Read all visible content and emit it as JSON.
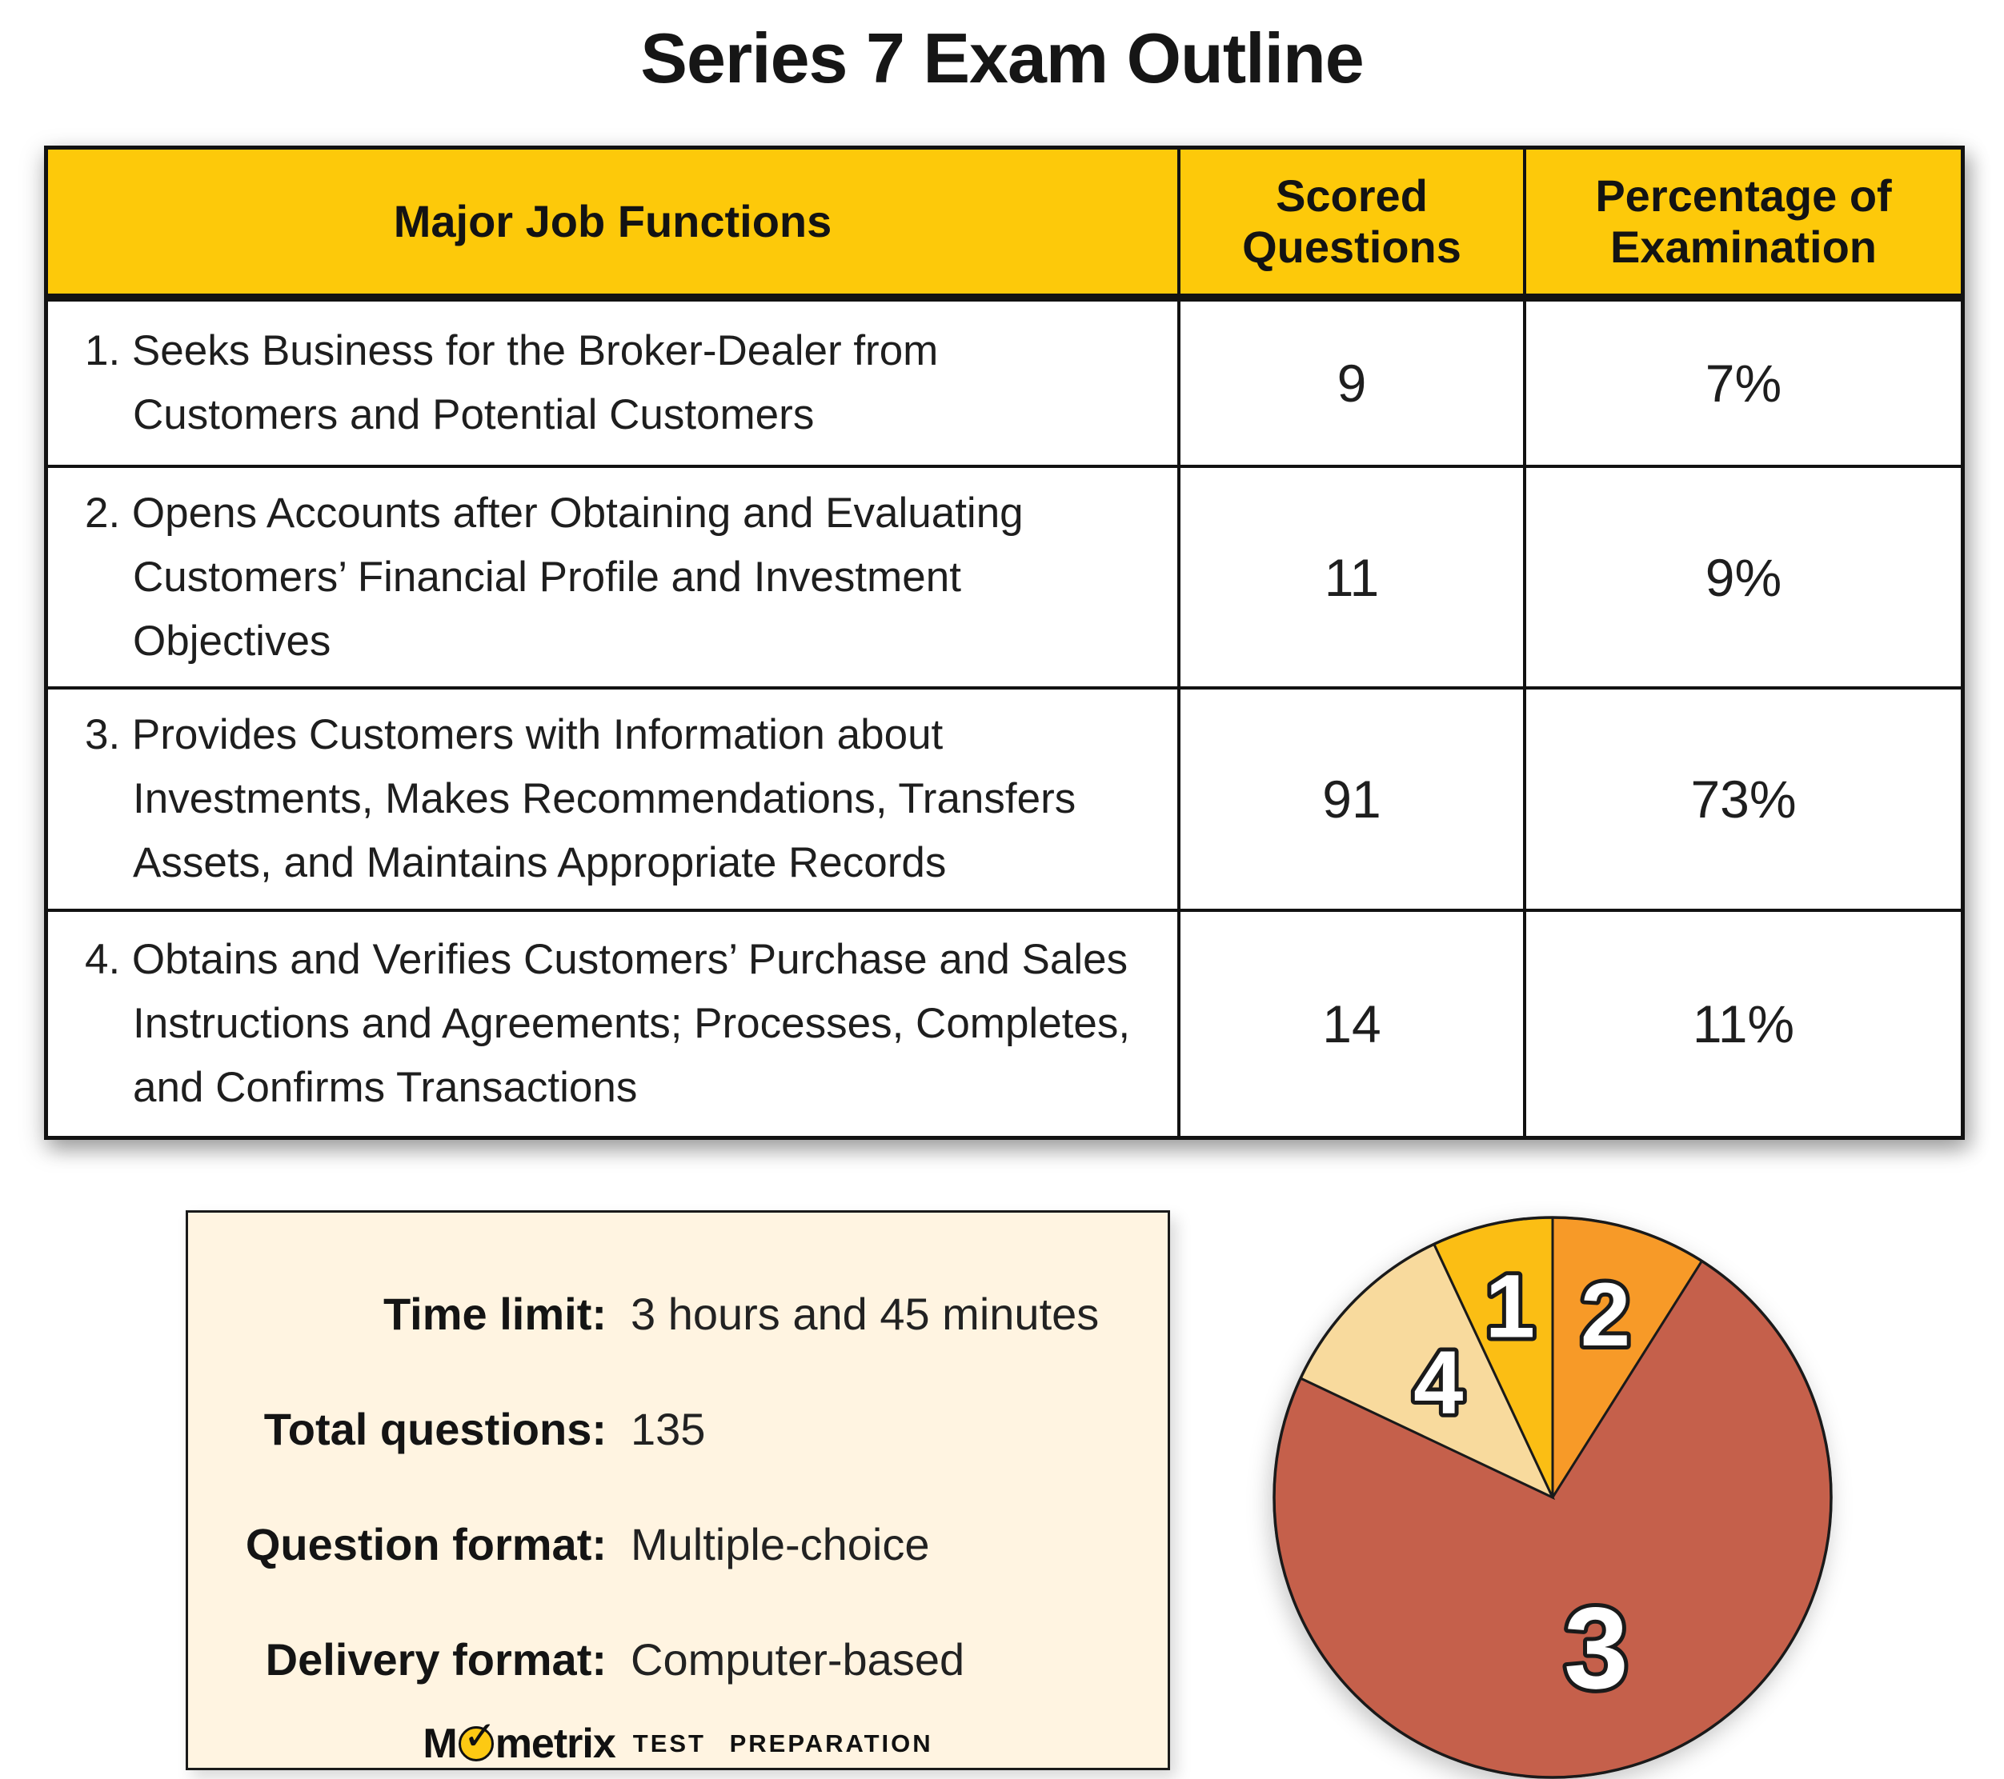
{
  "title": "Series 7 Exam Outline",
  "table": {
    "headers": [
      "Major Job Functions",
      "Scored Questions",
      "Percentage of Examination"
    ],
    "rows": [
      {
        "number": "1.",
        "function": "Seeks Business for the Broker-Dealer from Customers and Potential Customers",
        "scored": "9",
        "percentage": "7%"
      },
      {
        "number": "2.",
        "function": "Opens Accounts after Obtaining and Evaluating Customers’ Financial Profile and Investment Objectives",
        "scored": "11",
        "percentage": "9%"
      },
      {
        "number": "3.",
        "function": "Provides Customers with Information about Investments, Makes Recommendations, Transfers Assets, and Maintains Appropriate Records",
        "scored": "91",
        "percentage": "73%"
      },
      {
        "number": "4.",
        "function": "Obtains and Verifies Customers’ Purchase and Sales Instructions and Agreements; Processes, Completes, and Confirms Transactions",
        "scored": "14",
        "percentage": "11%"
      }
    ]
  },
  "info_box": {
    "items": [
      {
        "label": "Time limit:",
        "value": "3 hours and 45 minutes"
      },
      {
        "label": "Total questions:",
        "value": "135"
      },
      {
        "label": "Question format:",
        "value": "Multiple-choice"
      },
      {
        "label": "Delivery format:",
        "value": "Computer-based"
      }
    ],
    "logo": {
      "word_start": "M",
      "check": "✓",
      "word_end": "metrix",
      "tagline": "TEST PREPARATION"
    }
  },
  "chart_data": {
    "type": "pie",
    "title": "Series 7 exam section weights",
    "labels": [
      "2",
      "3",
      "4",
      "1"
    ],
    "values": [
      9,
      73,
      11,
      7
    ],
    "units": "percent of examination",
    "start_angle_deg": 0,
    "direction": "clockwise",
    "colors": [
      "#F79A28",
      "#C5604B",
      "#F8DA9D",
      "#FBBE14"
    ],
    "label_radius_frac": [
      0.68,
      0.56,
      0.58,
      0.7
    ],
    "label_color": "#FFFFFF",
    "label_outline": "#1A1A1A",
    "legend_position": "none"
  },
  "colors": {
    "header_bg": "#FDC90A",
    "info_box_bg": "#FFF4E1",
    "border": "#121212",
    "logo_circle": "#FDC913"
  }
}
